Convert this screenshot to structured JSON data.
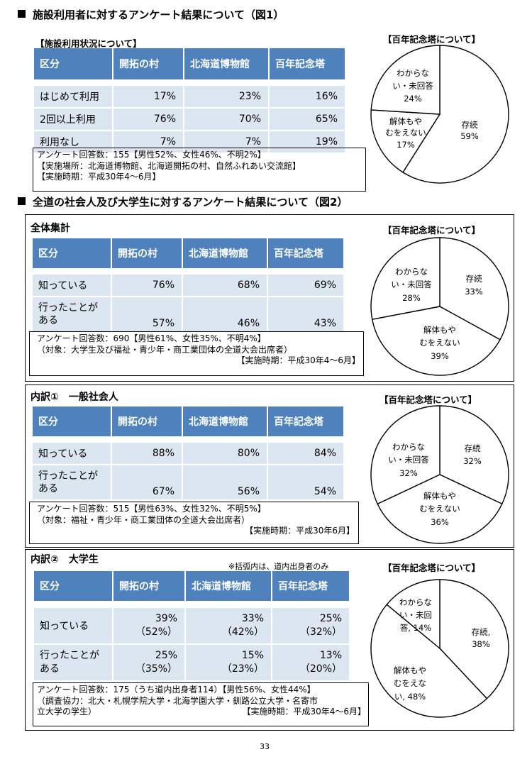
{
  "section1": {
    "heading": "施設利用者に対するアンケート結果について（図1）",
    "table_title": "【施設利用状況について】",
    "headers": [
      "区分",
      "開拓の村",
      "北海道博物館",
      "百年記念塔"
    ],
    "rows": [
      [
        "はじめて利用",
        "17%",
        "23%",
        "16%"
      ],
      [
        "2回以上利用",
        "76%",
        "70%",
        "65%"
      ],
      [
        "利用なし",
        "7%",
        "7%",
        "19%"
      ]
    ],
    "notes": [
      "アンケート回答数：155【男性52%、女性46%、不明2%】",
      "【実施場所：北海道博物館、北海道開拓の村、自然ふれあい交流館】",
      "【実施時期：平成30年4～6月】"
    ],
    "pie_title": "【百年記念塔について】",
    "pie_labels": [
      [
        "存続",
        "59%"
      ],
      [
        "解体もや",
        "むをえない",
        "17%"
      ],
      [
        "わからな",
        "い・未回答",
        "24%"
      ]
    ]
  },
  "section2": {
    "heading": "全道の社会人及び大学生に対するアンケート結果について（図2）",
    "blocks": [
      {
        "title": "全体集計",
        "headers": [
          "区分",
          "開拓の村",
          "北海道博物館",
          "百年記念塔"
        ],
        "rows": [
          [
            "知っている",
            "76%",
            "68%",
            "69%"
          ],
          [
            "行ったことが\nある",
            "57%",
            "46%",
            "43%"
          ]
        ],
        "notes": [
          "アンケート回答数：690【男性61%、女性35%、不明4%】",
          "（対象：大学生及び福祉・青少年・商工業団体の全道大会出席者）",
          "【実施時期：平成30年4～6月】"
        ],
        "pie_title": "【百年記念塔について】",
        "pie_labels": [
          [
            "存続",
            "33%"
          ],
          [
            "解体もや",
            "むをえない",
            "39%"
          ],
          [
            "わからな",
            "い・未回答",
            "28%"
          ]
        ]
      },
      {
        "title": "内訳①　一般社会人",
        "headers": [
          "区分",
          "開拓の村",
          "北海道博物館",
          "百年記念塔"
        ],
        "rows": [
          [
            "知っている",
            "88%",
            "80%",
            "84%"
          ],
          [
            "行ったことが\nある",
            "67%",
            "56%",
            "54%"
          ]
        ],
        "notes": [
          "アンケート回答数：515【男性63%、女性32%、不明5%】",
          "（対象：福祉・青少年・商工業団体の全道大会出席者）",
          "【実施時期：平成30年6月】"
        ],
        "pie_title": "【百年記念塔について】",
        "pie_labels": [
          [
            "存続",
            "32%"
          ],
          [
            "解体もや",
            "むをえない",
            "36%"
          ],
          [
            "わからな",
            "い・未回答",
            "32%"
          ]
        ]
      },
      {
        "title": "内訳②　大学生",
        "subnote": "※括弧内は、道内出身者のみ",
        "headers": [
          "区分",
          "開拓の村",
          "北海道博物館",
          "百年記念塔"
        ],
        "rows": [
          [
            "知っている",
            "39%\n（52%）",
            "33%\n（42%）",
            "25%\n（32%）"
          ],
          [
            "行ったことが\nある",
            "25%\n（35%）",
            "15%\n（23%）",
            "13%\n（20%）"
          ]
        ],
        "notes": [
          "アンケート回答数：175（うち道内出身者114）【男性56%、女性44%】",
          "（調査協力：北大・札幌学院大学・北海学園大学・釧路公立大学・名寄市",
          "立大学の学生）",
          "【実施時期：平成30年4～6月】"
        ],
        "pie_title": "【百年記念塔について】",
        "pie_labels": [
          [
            "存続,",
            "38%"
          ],
          [
            "解体もや",
            "むをえな",
            "い, 48%"
          ],
          [
            "わからな",
            "い・未回",
            "答, 14%"
          ]
        ]
      }
    ]
  },
  "page_number": "33",
  "chart_data": [
    {
      "type": "pie",
      "title": "【百年記念塔について】",
      "categories": [
        "存続",
        "解体もやむをえない",
        "わからない・未回答"
      ],
      "values": [
        59,
        17,
        24
      ]
    },
    {
      "type": "pie",
      "title": "【百年記念塔について】",
      "categories": [
        "存続",
        "解体もやむをえない",
        "わからない・未回答"
      ],
      "values": [
        33,
        39,
        28
      ]
    },
    {
      "type": "pie",
      "title": "【百年記念塔について】",
      "categories": [
        "存続",
        "解体もやむをえない",
        "わからない・未回答"
      ],
      "values": [
        32,
        36,
        32
      ]
    },
    {
      "type": "pie",
      "title": "【百年記念塔について】",
      "categories": [
        "存続",
        "解体もやむをえない",
        "わからない・未回答"
      ],
      "values": [
        38,
        48,
        14
      ]
    }
  ]
}
